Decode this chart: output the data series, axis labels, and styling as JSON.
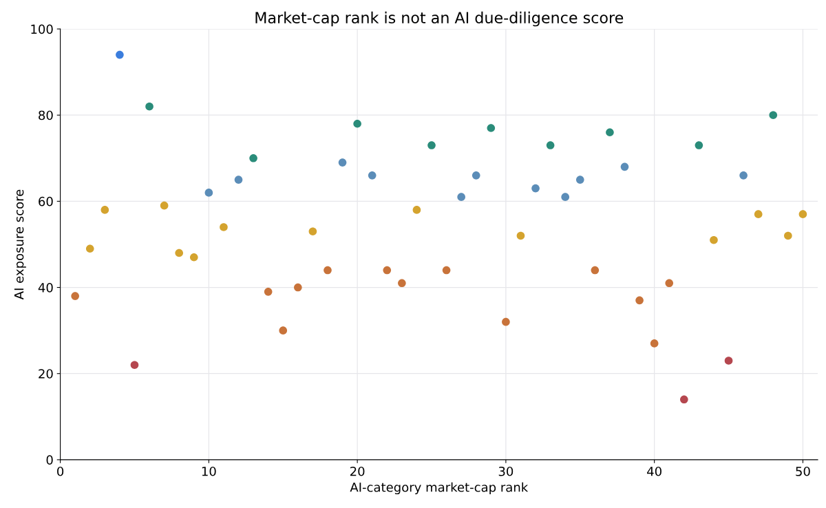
{
  "chart_data": {
    "type": "scatter",
    "title": "Market-cap rank is not an AI due-diligence score",
    "xlabel": "AI-category market-cap rank",
    "ylabel": "AI exposure score",
    "xlim": [
      0,
      51
    ],
    "ylim": [
      0,
      100
    ],
    "xticks": [
      0,
      10,
      20,
      30,
      40,
      50
    ],
    "yticks": [
      0,
      20,
      40,
      60,
      80,
      100
    ],
    "grid": true,
    "marker": "circle",
    "legend": false,
    "series": [
      {
        "x": [
          1,
          2,
          3,
          4,
          5,
          6,
          7,
          8,
          9,
          10,
          11,
          12,
          13,
          14,
          15,
          16,
          17,
          18,
          19,
          20,
          21,
          22,
          23,
          24,
          25,
          26,
          27,
          28,
          29,
          30,
          31,
          32,
          33,
          34,
          35,
          36,
          37,
          38,
          39,
          40,
          41,
          42,
          43,
          44,
          45,
          46,
          47,
          48,
          49,
          50
        ],
        "values": [
          38,
          49,
          58,
          94,
          22,
          82,
          59,
          48,
          47,
          62,
          54,
          65,
          70,
          39,
          30,
          40,
          53,
          44,
          69,
          78,
          66,
          44,
          41,
          58,
          73,
          44,
          61,
          66,
          77,
          32,
          52,
          63,
          73,
          61,
          65,
          44,
          76,
          68,
          37,
          27,
          41,
          14,
          73,
          51,
          23,
          66,
          57,
          80,
          52,
          57
        ],
        "colors": [
          "#c8733a",
          "#d4a32e",
          "#d4a32e",
          "#3b7ddd",
          "#b5474f",
          "#2a8c7a",
          "#d4a32e",
          "#d4a32e",
          "#d4a32e",
          "#5b8db8",
          "#d4a32e",
          "#5b8db8",
          "#2a8c7a",
          "#c8733a",
          "#c8733a",
          "#c8733a",
          "#d4a32e",
          "#c8733a",
          "#5b8db8",
          "#2a8c7a",
          "#5b8db8",
          "#c8733a",
          "#c8733a",
          "#d4a32e",
          "#2a8c7a",
          "#c8733a",
          "#5b8db8",
          "#5b8db8",
          "#2a8c7a",
          "#c8733a",
          "#d4a32e",
          "#5b8db8",
          "#2a8c7a",
          "#5b8db8",
          "#5b8db8",
          "#c8733a",
          "#2a8c7a",
          "#5b8db8",
          "#c8733a",
          "#c8733a",
          "#c8733a",
          "#b5474f",
          "#2a8c7a",
          "#d4a32e",
          "#b5474f",
          "#5b8db8",
          "#d4a32e",
          "#2a8c7a",
          "#d4a32e",
          "#d4a32e"
        ]
      }
    ]
  }
}
